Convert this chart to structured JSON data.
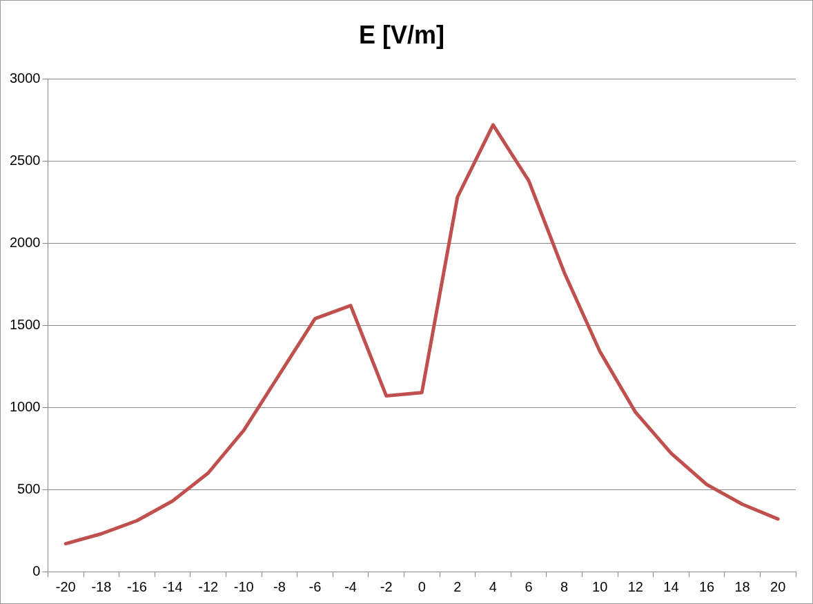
{
  "chart_data": {
    "type": "line",
    "title": "E [V/m]",
    "categories": [
      "-20",
      "-18",
      "-16",
      "-14",
      "-12",
      "-10",
      "-8",
      "-6",
      "-4",
      "-2",
      "0",
      "2",
      "4",
      "6",
      "8",
      "10",
      "12",
      "14",
      "16",
      "18",
      "20"
    ],
    "series": [
      {
        "color": "#c0504d",
        "values": [
          170,
          230,
          310,
          430,
          600,
          860,
          1200,
          1540,
          1620,
          1070,
          1090,
          2280,
          2720,
          2380,
          1820,
          1340,
          970,
          720,
          530,
          410,
          320
        ]
      }
    ],
    "ylim": [
      0,
      3000
    ],
    "yticks": [
      0,
      500,
      1000,
      1500,
      2000,
      2500,
      3000
    ],
    "grid": "y",
    "legend": false,
    "marker": "none",
    "line_style": "solid"
  }
}
